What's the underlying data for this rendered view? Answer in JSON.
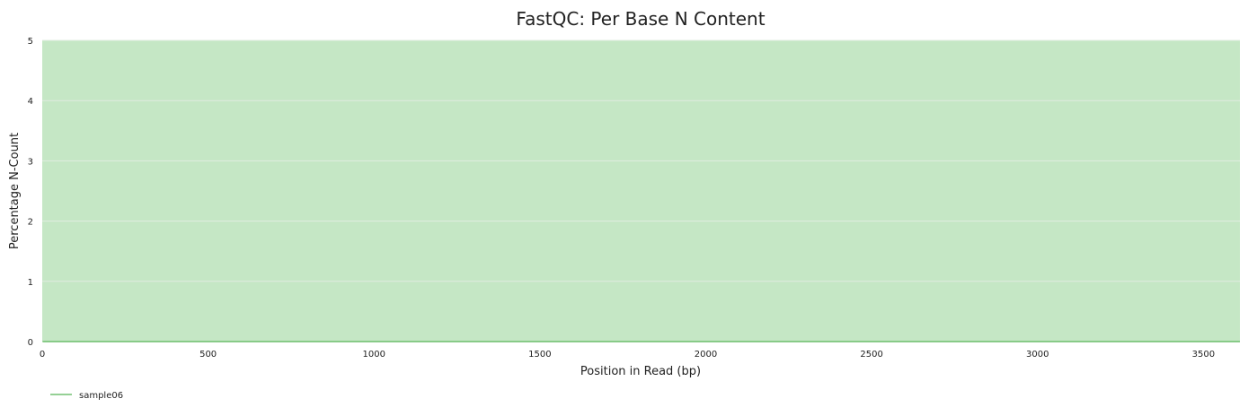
{
  "chart_data": {
    "type": "line",
    "title": "FastQC: Per Base N Content",
    "xlabel": "Position in Read (bp)",
    "ylabel": "Percentage N-Count",
    "xlim": [
      0,
      3610
    ],
    "ylim": [
      0,
      5
    ],
    "x_ticks": [
      0,
      500,
      1000,
      1500,
      2000,
      2500,
      3000,
      3500
    ],
    "y_ticks": [
      0,
      1,
      2,
      3,
      4,
      5
    ],
    "grid": true,
    "background_band": {
      "from": 0,
      "to": 5,
      "color": "#c5e7c5",
      "status": "pass"
    },
    "legend_position": "bottom-left",
    "series": [
      {
        "name": "sample06",
        "color": "#56b456",
        "x": [
          1,
          250,
          500,
          750,
          1000,
          1250,
          1500,
          1750,
          2000,
          2250,
          2500,
          2750,
          3000,
          3250,
          3500,
          3610
        ],
        "y": [
          0,
          0,
          0,
          0,
          0,
          0,
          0,
          0,
          0,
          0,
          0,
          0,
          0,
          0,
          0,
          0
        ]
      }
    ]
  }
}
